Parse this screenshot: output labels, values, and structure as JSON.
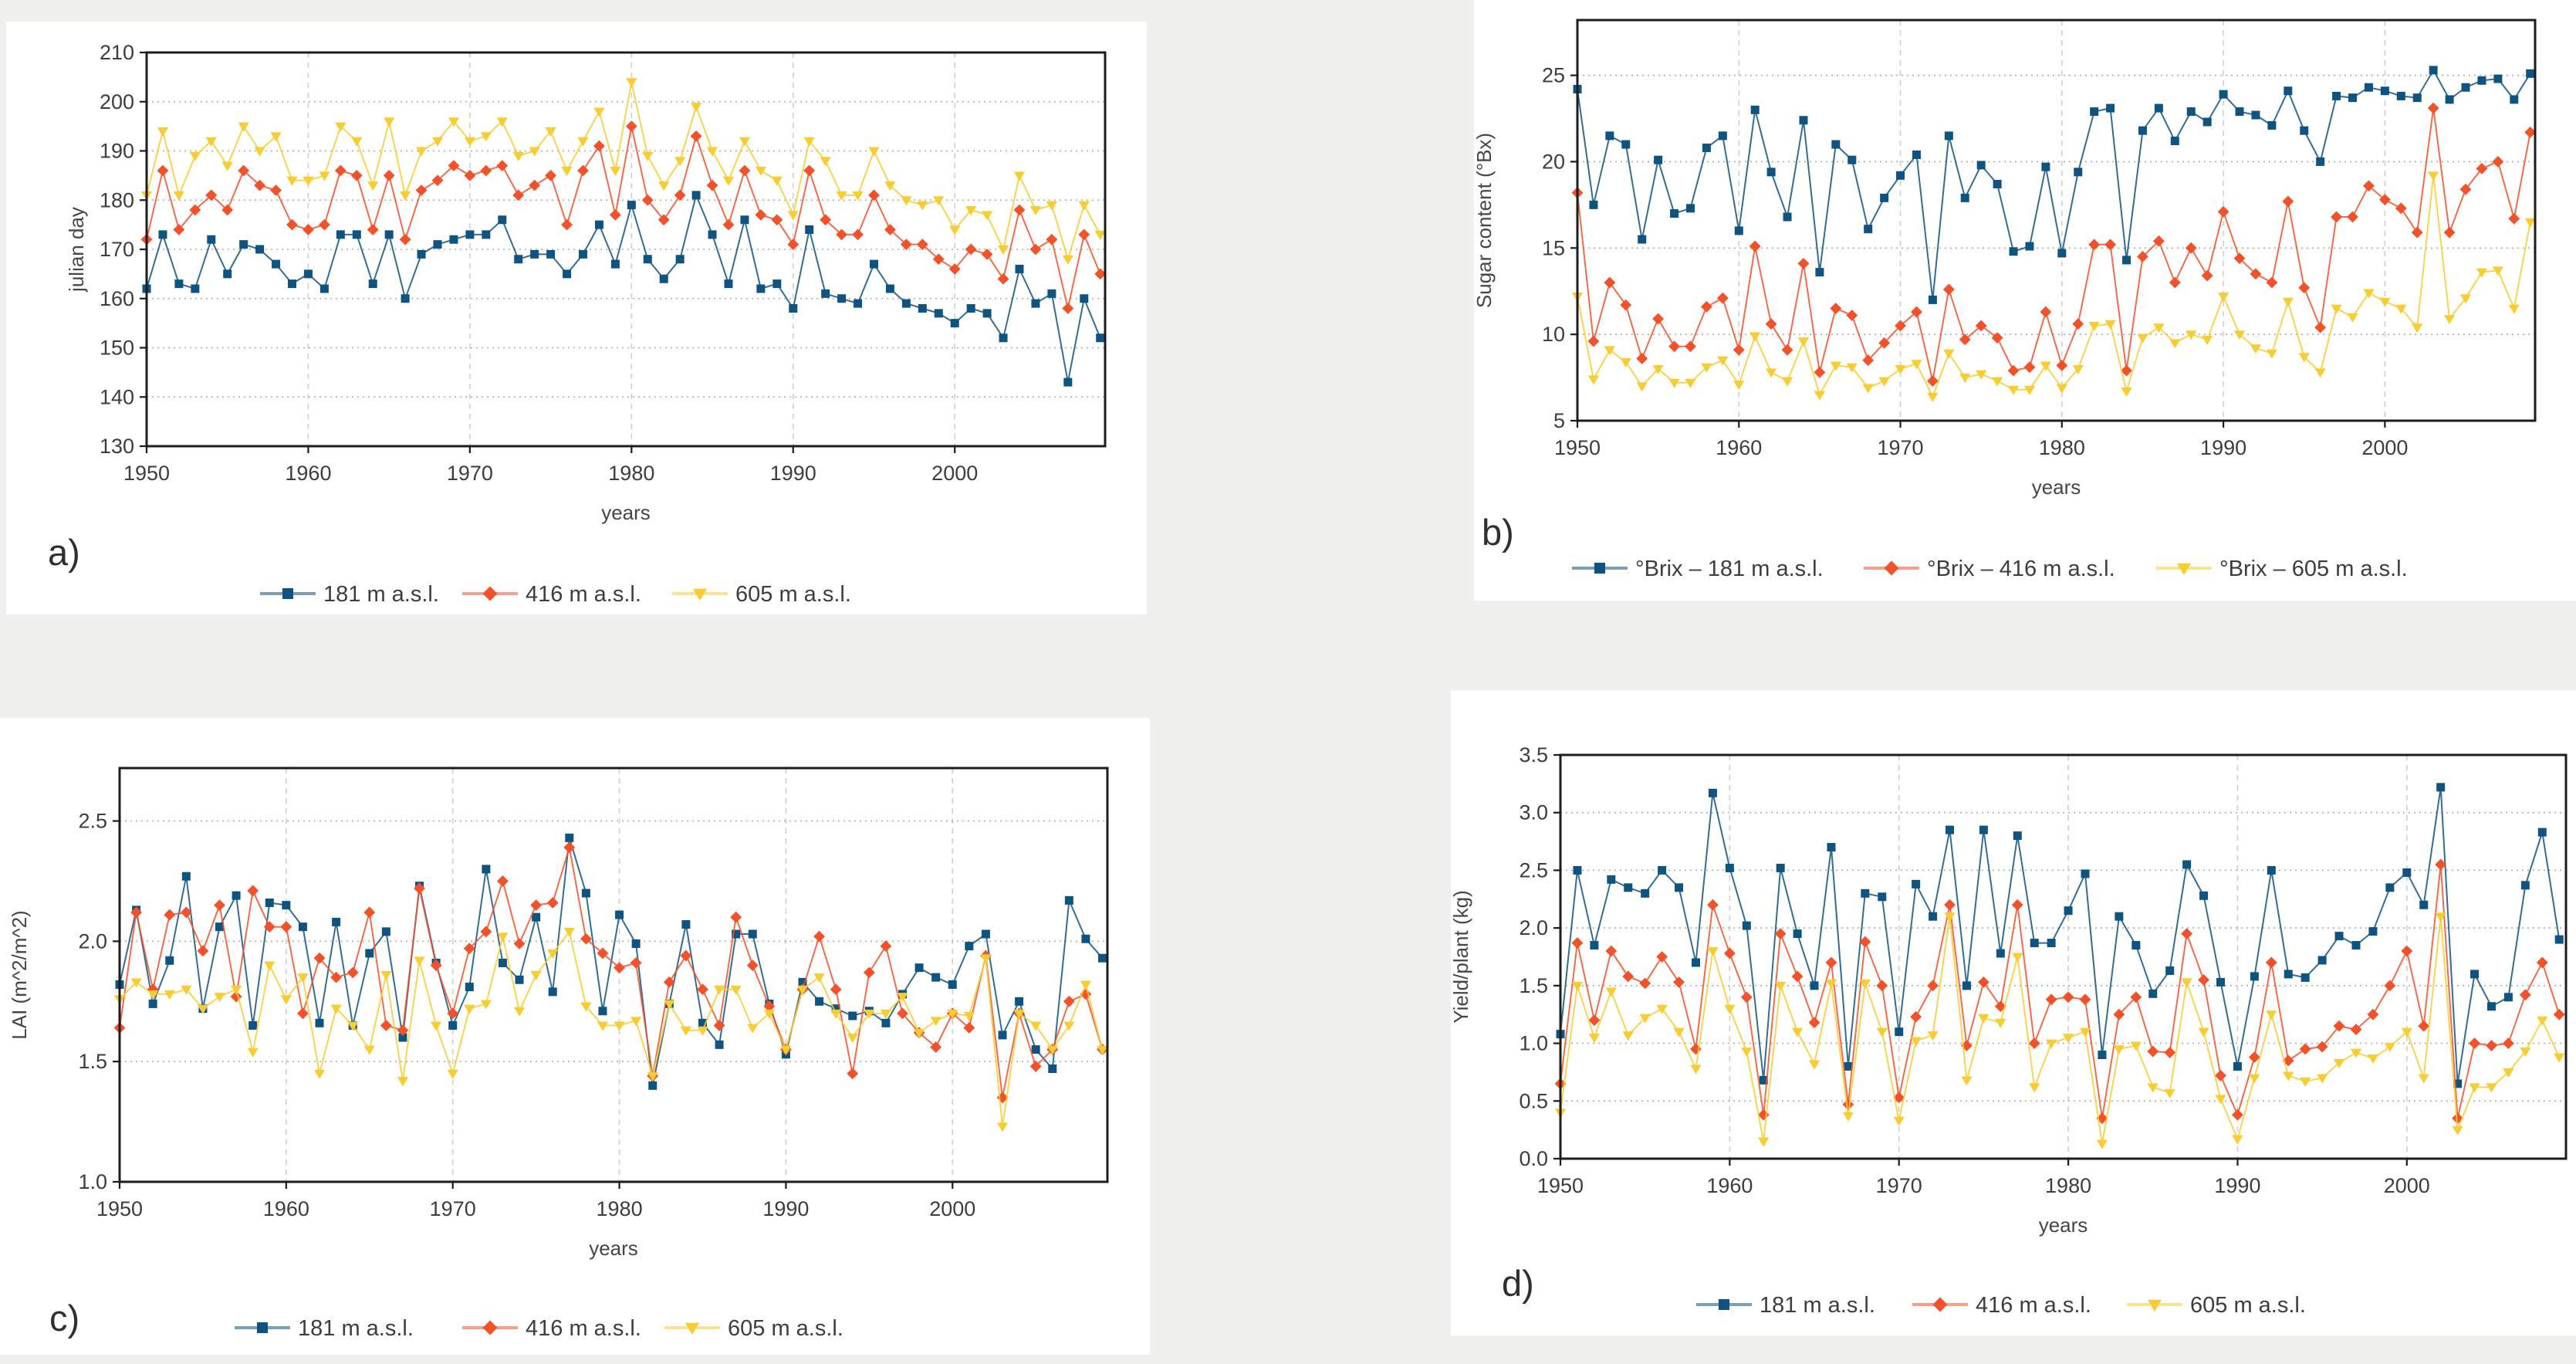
{
  "page": {
    "background_color": "#f0f0ef",
    "panel_color": "#ffffff"
  },
  "colors": {
    "blue": "#0f5381",
    "red": "#f2512a",
    "yellow": "#f8cd33"
  },
  "chart_data": [
    {
      "id": "a",
      "type": "line",
      "label": "a)",
      "title": "",
      "xlabel": "years",
      "ylabel": "julian day",
      "xmin": 1950,
      "xmax": 2009.3,
      "ymin": 130,
      "ymax": 210,
      "grid": true,
      "legend_position": "bottom",
      "xtick_values": [
        1950,
        1960,
        1970,
        1980,
        1990,
        2000
      ],
      "xtick_labels": [
        "1950",
        "1960",
        "1970",
        "1980",
        "1990",
        "2000"
      ],
      "ytick_values": [
        130,
        140,
        150,
        160,
        170,
        180,
        190,
        200,
        210
      ],
      "ytick_labels": [
        "130",
        "140",
        "150",
        "160",
        "170",
        "180",
        "190",
        "200",
        "210"
      ],
      "x_start_year": 1950,
      "series": [
        {
          "name": "181 m a.s.l.",
          "color": "#0f5381",
          "marker": "square",
          "values": [
            162,
            173,
            163,
            162,
            172,
            165,
            171,
            170,
            167,
            163,
            165,
            162,
            173,
            173,
            163,
            173,
            160,
            169,
            171,
            172,
            173,
            173,
            176,
            168,
            169,
            169,
            165,
            169,
            175,
            167,
            179,
            168,
            164,
            168,
            181,
            173,
            163,
            176,
            162,
            163,
            158,
            174,
            161,
            160,
            159,
            167,
            162,
            159,
            158,
            157,
            155,
            158,
            157,
            152,
            166,
            159,
            161,
            143,
            160,
            152
          ]
        },
        {
          "name": "416 m a.s.l.",
          "color": "#f2512a",
          "marker": "diamond",
          "values": [
            172,
            186,
            174,
            178,
            181,
            178,
            186,
            183,
            182,
            175,
            174,
            175,
            186,
            185,
            174,
            185,
            172,
            182,
            184,
            187,
            185,
            186,
            187,
            181,
            183,
            185,
            175,
            186,
            191,
            177,
            195,
            180,
            176,
            181,
            193,
            183,
            175,
            186,
            177,
            176,
            171,
            186,
            176,
            173,
            173,
            181,
            174,
            171,
            171,
            168,
            166,
            170,
            169,
            164,
            178,
            170,
            172,
            158,
            173,
            165
          ]
        },
        {
          "name": "605 m a.s.l.",
          "color": "#f8cd33",
          "marker": "triangle",
          "values": [
            181,
            194,
            181,
            189,
            192,
            187,
            195,
            190,
            193,
            184,
            184,
            185,
            195,
            192,
            183,
            196,
            181,
            190,
            192,
            196,
            192,
            193,
            196,
            189,
            190,
            194,
            186,
            192,
            198,
            186,
            204,
            189,
            183,
            188,
            199,
            190,
            184,
            192,
            186,
            184,
            177,
            192,
            188,
            181,
            181,
            190,
            183,
            180,
            179,
            180,
            174,
            178,
            177,
            170,
            185,
            178,
            179,
            168,
            179,
            173
          ]
        }
      ]
    },
    {
      "id": "b",
      "type": "line",
      "label": "b)",
      "title": "",
      "xlabel": "years",
      "ylabel": "Sugar content (°Bx)",
      "xmin": 1950,
      "xmax": 2009.3,
      "ymin": 5,
      "ymax": 28.2,
      "grid": true,
      "legend_position": "bottom",
      "xtick_values": [
        1950,
        1960,
        1970,
        1980,
        1990,
        2000
      ],
      "xtick_labels": [
        "1950",
        "1960",
        "1970",
        "1980",
        "1990",
        "2000"
      ],
      "ytick_values": [
        5,
        10,
        15,
        20,
        25
      ],
      "ytick_labels": [
        "5",
        "10",
        "15",
        "20",
        "25"
      ],
      "x_start_year": 1950,
      "series": [
        {
          "name": "°Brix – 181 m a.s.l.",
          "color": "#0f5381",
          "marker": "square",
          "values": [
            24.2,
            17.5,
            21.5,
            21.0,
            15.5,
            20.1,
            17.0,
            17.3,
            20.8,
            21.5,
            16.0,
            23.0,
            19.4,
            16.8,
            22.4,
            13.6,
            21.0,
            20.1,
            16.1,
            17.9,
            19.2,
            20.4,
            12.0,
            21.5,
            17.9,
            19.8,
            18.7,
            14.8,
            15.1,
            19.7,
            14.7,
            19.4,
            22.9,
            23.1,
            14.3,
            21.8,
            23.1,
            21.2,
            22.9,
            22.3,
            23.9,
            22.9,
            22.7,
            22.1,
            24.1,
            21.8,
            20.0,
            23.8,
            23.7,
            24.3,
            24.1,
            23.8,
            23.7,
            25.3,
            23.6,
            24.3,
            24.7,
            24.8,
            23.6,
            25.1
          ]
        },
        {
          "name": "°Brix – 416 m a.s.l.",
          "color": "#f2512a",
          "marker": "diamond",
          "values": [
            18.2,
            9.6,
            13.0,
            11.7,
            8.6,
            10.9,
            9.3,
            9.3,
            11.6,
            12.1,
            9.1,
            15.1,
            10.6,
            9.1,
            14.1,
            7.8,
            11.5,
            11.1,
            8.5,
            9.5,
            10.5,
            11.3,
            7.3,
            12.6,
            9.7,
            10.5,
            9.8,
            7.9,
            8.1,
            11.3,
            8.2,
            10.6,
            15.2,
            15.2,
            7.9,
            14.5,
            15.4,
            13.0,
            15.0,
            13.4,
            17.1,
            14.4,
            13.5,
            13.0,
            17.7,
            12.7,
            10.4,
            16.8,
            16.8,
            18.6,
            17.8,
            17.3,
            15.9,
            23.1,
            15.9,
            18.4,
            19.6,
            20.0,
            16.7,
            21.7
          ]
        },
        {
          "name": "°Brix – 605 m a.s.l.",
          "color": "#f8cd33",
          "marker": "triangle",
          "values": [
            12.2,
            7.4,
            9.1,
            8.4,
            7.0,
            8.0,
            7.2,
            7.2,
            8.1,
            8.5,
            7.1,
            9.9,
            7.8,
            7.3,
            9.6,
            6.5,
            8.2,
            8.1,
            6.9,
            7.3,
            8.0,
            8.3,
            6.4,
            8.9,
            7.5,
            7.7,
            7.3,
            6.8,
            6.8,
            8.2,
            6.9,
            8.0,
            10.5,
            10.6,
            6.7,
            9.8,
            10.4,
            9.5,
            10.0,
            9.7,
            12.2,
            10.0,
            9.2,
            8.9,
            11.9,
            8.7,
            7.8,
            11.5,
            11.0,
            12.4,
            11.9,
            11.5,
            10.4,
            19.2,
            10.9,
            12.1,
            13.6,
            13.7,
            11.5,
            16.5
          ]
        }
      ]
    },
    {
      "id": "c",
      "type": "line",
      "label": "c)",
      "title": "",
      "xlabel": "years",
      "ylabel": "LAI (m^2/m^2)",
      "xmin": 1950,
      "xmax": 2009.3,
      "ymin": 1.0,
      "ymax": 2.72,
      "grid": true,
      "legend_position": "bottom",
      "xtick_values": [
        1950,
        1960,
        1970,
        1980,
        1990,
        2000
      ],
      "xtick_labels": [
        "1950",
        "1960",
        "1970",
        "1980",
        "1990",
        "2000"
      ],
      "ytick_values": [
        1.0,
        1.5,
        2.0,
        2.5
      ],
      "ytick_labels": [
        "1.0",
        "1.5",
        "2.0",
        "2.5"
      ],
      "x_start_year": 1950,
      "series": [
        {
          "name": "181 m a.s.l.",
          "color": "#0f5381",
          "marker": "square",
          "values": [
            1.82,
            2.13,
            1.74,
            1.92,
            2.27,
            1.72,
            2.06,
            2.19,
            1.65,
            2.16,
            2.15,
            2.06,
            1.66,
            2.08,
            1.65,
            1.95,
            2.04,
            1.6,
            2.23,
            1.91,
            1.65,
            1.81,
            2.3,
            1.91,
            1.84,
            2.1,
            1.79,
            2.43,
            2.2,
            1.71,
            2.11,
            1.99,
            1.4,
            1.74,
            2.07,
            1.66,
            1.57,
            2.03,
            2.03,
            1.74,
            1.53,
            1.83,
            1.75,
            1.72,
            1.69,
            1.71,
            1.66,
            1.78,
            1.89,
            1.85,
            1.82,
            1.98,
            2.03,
            1.61,
            1.75,
            1.55,
            1.47,
            2.17,
            2.01,
            1.93
          ]
        },
        {
          "name": "416 m a.s.l.",
          "color": "#f2512a",
          "marker": "diamond",
          "values": [
            1.64,
            2.12,
            1.8,
            2.11,
            2.12,
            1.96,
            2.15,
            1.77,
            2.21,
            2.06,
            2.06,
            1.7,
            1.93,
            1.85,
            1.87,
            2.12,
            1.65,
            1.63,
            2.22,
            1.9,
            1.7,
            1.97,
            2.04,
            2.25,
            1.99,
            2.15,
            2.16,
            2.39,
            2.01,
            1.95,
            1.89,
            1.91,
            1.44,
            1.83,
            1.94,
            1.8,
            1.65,
            2.1,
            1.9,
            1.73,
            1.55,
            1.8,
            2.02,
            1.8,
            1.45,
            1.87,
            1.98,
            1.7,
            1.62,
            1.56,
            1.7,
            1.64,
            1.94,
            1.35,
            1.7,
            1.48,
            1.55,
            1.75,
            1.78,
            1.55
          ]
        },
        {
          "name": "605 m a.s.l.",
          "color": "#f8cd33",
          "marker": "triangle",
          "values": [
            1.76,
            1.83,
            1.78,
            1.78,
            1.8,
            1.72,
            1.77,
            1.8,
            1.54,
            1.9,
            1.76,
            1.85,
            1.45,
            1.72,
            1.65,
            1.55,
            1.86,
            1.42,
            1.92,
            1.65,
            1.45,
            1.72,
            1.74,
            2.02,
            1.71,
            1.86,
            1.95,
            2.04,
            1.73,
            1.65,
            1.65,
            1.67,
            1.44,
            1.74,
            1.63,
            1.63,
            1.8,
            1.8,
            1.64,
            1.7,
            1.55,
            1.8,
            1.85,
            1.7,
            1.6,
            1.7,
            1.7,
            1.77,
            1.62,
            1.67,
            1.7,
            1.69,
            1.93,
            1.23,
            1.7,
            1.65,
            1.55,
            1.65,
            1.82,
            1.55
          ]
        }
      ]
    },
    {
      "id": "d",
      "type": "line",
      "label": "d)",
      "title": "",
      "xlabel": "years",
      "ylabel": "Yield/plant  (kg)",
      "xmin": 1950,
      "xmax": 2009.4,
      "ymin": 0.0,
      "ymax": 3.5,
      "grid": true,
      "legend_position": "bottom",
      "xtick_values": [
        1950,
        1960,
        1970,
        1980,
        1990,
        2000
      ],
      "xtick_labels": [
        "1950",
        "1960",
        "1970",
        "1980",
        "1990",
        "2000"
      ],
      "ytick_values": [
        0.0,
        0.5,
        1.0,
        1.5,
        2.0,
        2.5,
        3.0,
        3.5
      ],
      "ytick_labels": [
        "0.0",
        "0.5",
        "1.0",
        "1.5",
        "2.0",
        "2.5",
        "3.0",
        "3.5"
      ],
      "x_start_year": 1950,
      "series": [
        {
          "name": "181 m a.s.l.",
          "color": "#0f5381",
          "marker": "square",
          "values": [
            1.08,
            2.5,
            1.85,
            2.42,
            2.35,
            2.3,
            2.5,
            2.35,
            1.7,
            3.17,
            2.52,
            2.02,
            0.68,
            2.52,
            1.95,
            1.5,
            2.7,
            0.8,
            2.3,
            2.27,
            1.1,
            2.38,
            2.1,
            2.85,
            1.5,
            2.85,
            1.78,
            2.8,
            1.87,
            1.87,
            2.15,
            2.47,
            0.9,
            2.1,
            1.85,
            1.43,
            1.63,
            2.55,
            2.28,
            1.53,
            0.8,
            1.58,
            2.5,
            1.6,
            1.57,
            1.72,
            1.93,
            1.85,
            1.97,
            2.35,
            2.48,
            2.2,
            3.22,
            0.65,
            1.6,
            1.32,
            1.4,
            2.37,
            2.83,
            1.9
          ]
        },
        {
          "name": "416 m a.s.l.",
          "color": "#f2512a",
          "marker": "diamond",
          "values": [
            0.65,
            1.87,
            1.2,
            1.8,
            1.58,
            1.52,
            1.75,
            1.53,
            0.95,
            2.2,
            1.78,
            1.4,
            0.38,
            1.95,
            1.58,
            1.18,
            1.7,
            0.47,
            1.88,
            1.5,
            0.53,
            1.23,
            1.5,
            2.2,
            0.98,
            1.53,
            1.32,
            2.2,
            1.0,
            1.38,
            1.4,
            1.38,
            0.35,
            1.25,
            1.4,
            0.93,
            0.92,
            1.95,
            1.55,
            0.72,
            0.38,
            0.88,
            1.7,
            0.85,
            0.95,
            0.97,
            1.15,
            1.12,
            1.25,
            1.5,
            1.8,
            1.15,
            2.55,
            0.35,
            1.0,
            0.98,
            1.0,
            1.42,
            1.7,
            1.25
          ]
        },
        {
          "name": "605 m a.s.l.",
          "color": "#f8cd33",
          "marker": "triangle",
          "values": [
            0.4,
            1.5,
            1.05,
            1.45,
            1.07,
            1.22,
            1.3,
            1.1,
            0.78,
            1.8,
            1.3,
            0.93,
            0.15,
            1.5,
            1.1,
            0.82,
            1.52,
            0.37,
            1.52,
            1.1,
            0.33,
            1.02,
            1.07,
            2.1,
            0.68,
            1.22,
            1.18,
            1.75,
            0.62,
            1.0,
            1.05,
            1.1,
            0.13,
            0.95,
            0.98,
            0.62,
            0.57,
            1.53,
            1.1,
            0.52,
            0.17,
            0.7,
            1.25,
            0.72,
            0.67,
            0.7,
            0.83,
            0.92,
            0.87,
            0.97,
            1.1,
            0.7,
            2.1,
            0.25,
            0.62,
            0.62,
            0.75,
            0.93,
            1.2,
            0.88
          ]
        }
      ]
    }
  ]
}
